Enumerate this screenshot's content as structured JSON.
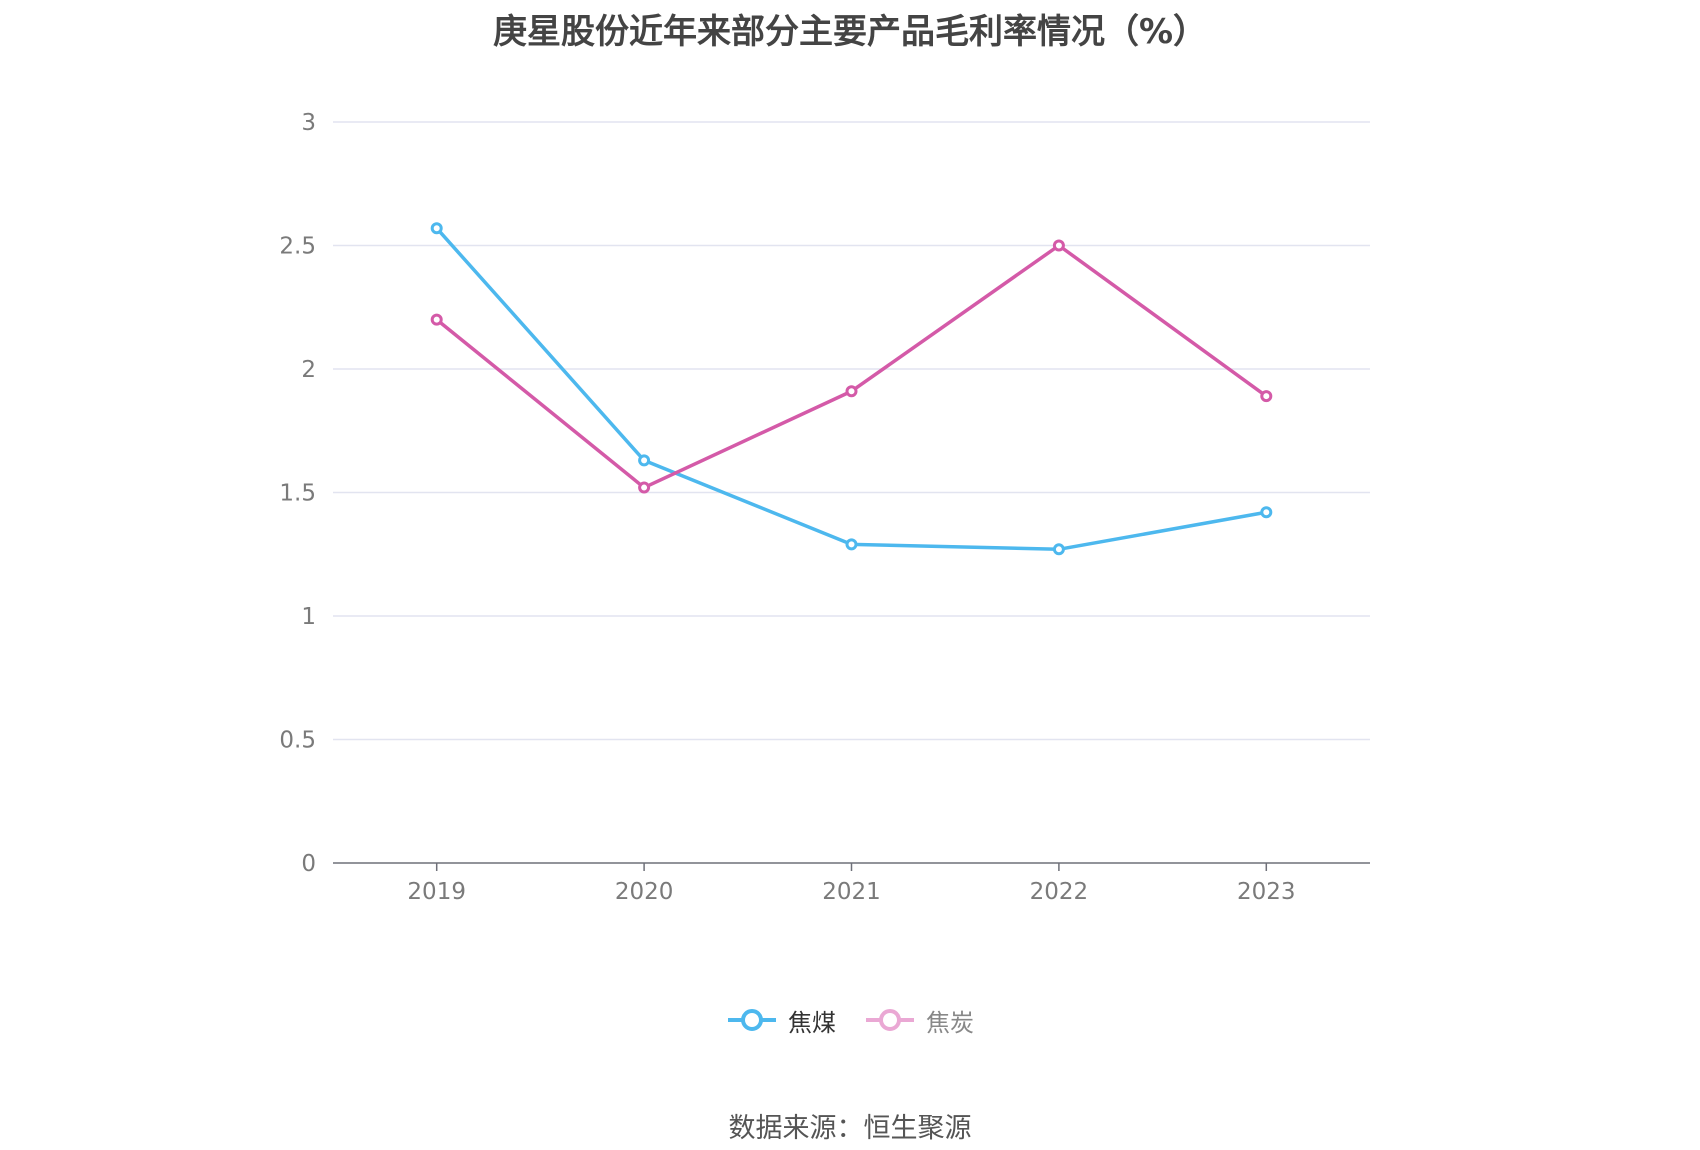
{
  "chart_data": {
    "type": "line",
    "title": "庚星股份近年来部分主要产品毛利率情况（%）",
    "categories": [
      "2019",
      "2020",
      "2021",
      "2022",
      "2023"
    ],
    "series": [
      {
        "name": "焦煤",
        "values": [
          2.57,
          1.63,
          1.29,
          1.27,
          1.42
        ],
        "color": "#4db8ee"
      },
      {
        "name": "焦炭",
        "values": [
          2.2,
          1.52,
          1.91,
          2.5,
          1.89
        ],
        "color": "#d45aa8"
      }
    ],
    "ylim": [
      0,
      3
    ],
    "yticks": [
      "0",
      "0.5",
      "1",
      "1.5",
      "2",
      "2.5",
      "3"
    ],
    "grid": true,
    "legend_position": "bottom",
    "legend_inactive_color": "#eaa8d4"
  },
  "source_text": "数据来源：恒生聚源"
}
